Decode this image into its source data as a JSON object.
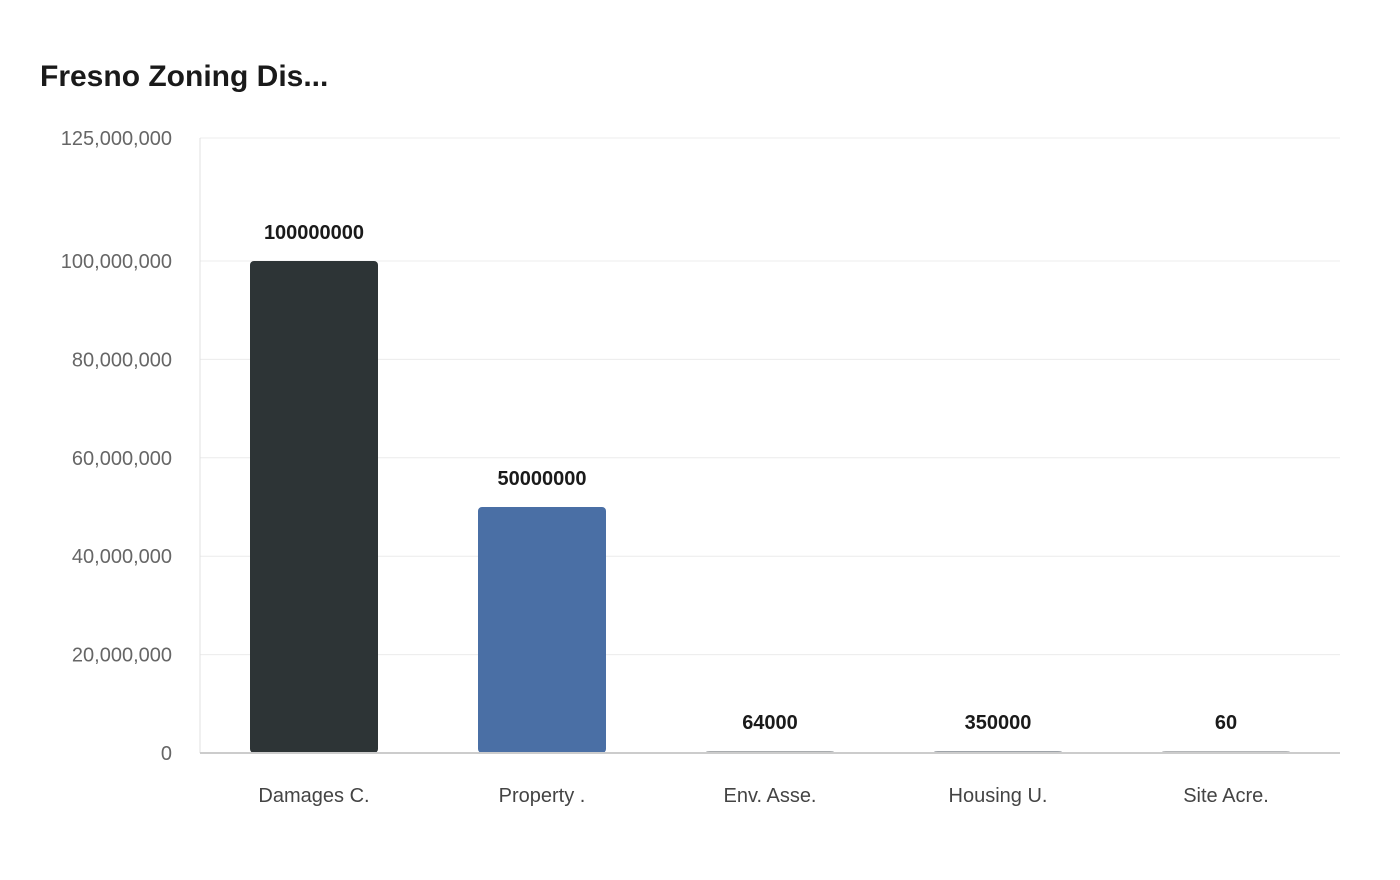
{
  "chart_data": {
    "type": "bar",
    "title": "Fresno Zoning Dis...",
    "xlabel": "",
    "ylabel": "",
    "categories": [
      "Damages C.",
      "Property .",
      "Env. Asse.",
      "Housing U.",
      "Site Acre."
    ],
    "values": [
      100000000,
      50000000,
      64000,
      350000,
      60
    ],
    "value_labels": [
      "100000000",
      "50000000",
      "64000",
      "350000",
      "60"
    ],
    "colors": [
      "#2d3436",
      "#4a6fa5",
      "#a9acae",
      "#9ea3a8",
      "#b4b6b8"
    ],
    "ylim": [
      0,
      125000000
    ],
    "yticks": [
      0,
      20000000,
      40000000,
      60000000,
      80000000,
      100000000,
      125000000
    ],
    "ytick_labels": [
      "0",
      "20,000,000",
      "40,000,000",
      "60,000,000",
      "80,000,000",
      "100,000,000",
      "125,000,000"
    ],
    "grid": true,
    "legend": "none"
  }
}
